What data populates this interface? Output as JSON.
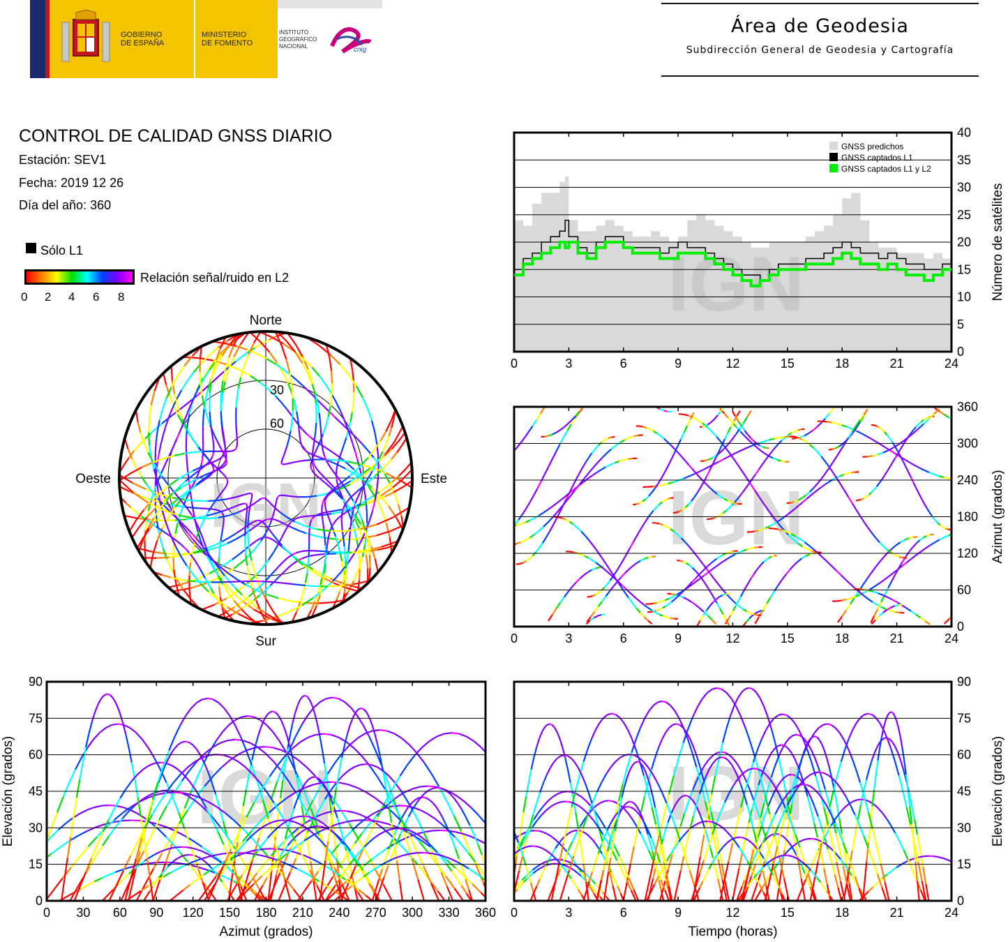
{
  "header": {
    "gov_line1": "GOBIERNO\nDE ESPAÑA",
    "gov_line2": "MINISTERIO\nDE FOMENTO",
    "gov_line3": "INSTITUTO\nGEOGRÁFICO\nNACIONAL",
    "cnig_logo": "cnig",
    "area_title": "Área de Geodesia",
    "area_subtitle": "Subdirección General de Geodesia y Cartografía"
  },
  "info": {
    "title": "CONTROL DE CALIDAD GNSS DIARIO",
    "station": "Estación: SEV1",
    "date": "Fecha: 2019 12 26",
    "doy": "Día del año: 360",
    "solo_l1": "Sólo L1",
    "snr_label": "Relación señal/ruido en L2",
    "snr_ticks": [
      "0",
      "2",
      "4",
      "6",
      "8"
    ]
  },
  "colors": {
    "snr_scale": [
      "#ff0000",
      "#ff8000",
      "#ffff00",
      "#00e000",
      "#00ffff",
      "#0040ff",
      "#8000ff",
      "#ff00ff"
    ],
    "predicted": "#d9d9d9",
    "l1": "#000000",
    "l1l2": "#00ee00"
  },
  "watermark": "IGN",
  "chart_data": [
    {
      "id": "sat_count",
      "type": "area",
      "xlabel": "",
      "ylabel": "Número de satélites",
      "xlim": [
        0,
        24
      ],
      "ylim": [
        0,
        40
      ],
      "xticks": [
        "0",
        "3",
        "6",
        "9",
        "12",
        "15",
        "18",
        "21",
        "24"
      ],
      "yticks": [
        "0",
        "5",
        "10",
        "15",
        "20",
        "25",
        "30",
        "35",
        "40"
      ],
      "grid": "horizontal",
      "legend_position": "top-right",
      "x": [
        0,
        0.5,
        1,
        1.5,
        2,
        2.5,
        2.8,
        3,
        3.5,
        4,
        4.5,
        5,
        5.5,
        6,
        6.5,
        7,
        7.5,
        8,
        8.5,
        9,
        9.5,
        10,
        10.5,
        11,
        11.5,
        12,
        12.5,
        13,
        13.5,
        14,
        14.5,
        15,
        15.5,
        16,
        16.5,
        17,
        17.5,
        18,
        18.5,
        19,
        19.5,
        20,
        20.5,
        21,
        21.5,
        22,
        22.5,
        23,
        23.5,
        24
      ],
      "series": [
        {
          "name": "GNSS predichos",
          "values": [
            24,
            23,
            27,
            29,
            29,
            31,
            32,
            24,
            22,
            22,
            23,
            24,
            23,
            22,
            21,
            21,
            22,
            21,
            20,
            21,
            24,
            25,
            24,
            23,
            22,
            21,
            20,
            19,
            19,
            20,
            20,
            20,
            20,
            21,
            22,
            23,
            25,
            28,
            29,
            24,
            20,
            19,
            19,
            18,
            18,
            18,
            17,
            18,
            17,
            17
          ]
        },
        {
          "name": "GNSS captados L1",
          "values": [
            15,
            17,
            18,
            20,
            21,
            22,
            24,
            21,
            19,
            18,
            20,
            21,
            21,
            19,
            19,
            19,
            19,
            18,
            19,
            20,
            19,
            19,
            18,
            17,
            16,
            15,
            14,
            14,
            13,
            15,
            16,
            16,
            16,
            17,
            17,
            18,
            19,
            20,
            19,
            18,
            18,
            17,
            18,
            17,
            16,
            16,
            15,
            15,
            16,
            16
          ]
        },
        {
          "name": "GNSS captados L1 y L2",
          "values": [
            14,
            16,
            17,
            18,
            19,
            20,
            19,
            20,
            18,
            17,
            19,
            20,
            20,
            19,
            18,
            18,
            18,
            17,
            17,
            18,
            18,
            18,
            17,
            16,
            15,
            14,
            13,
            12,
            13,
            14,
            15,
            15,
            15,
            16,
            16,
            16,
            17,
            18,
            17,
            16,
            16,
            15,
            16,
            15,
            14,
            14,
            13,
            14,
            15,
            15
          ]
        }
      ]
    },
    {
      "id": "azimuth_time",
      "type": "scatter",
      "xlabel": "",
      "ylabel": "Azimut (grados)",
      "xlim": [
        0,
        24
      ],
      "ylim": [
        0,
        360
      ],
      "xticks": [
        "0",
        "3",
        "6",
        "9",
        "12",
        "15",
        "18",
        "21",
        "24"
      ],
      "yticks": [
        "0",
        "60",
        "120",
        "180",
        "240",
        "300",
        "360"
      ],
      "grid": "horizontal"
    },
    {
      "id": "elevation_azimuth",
      "type": "scatter",
      "xlabel": "Azimut (grados)",
      "ylabel": "Elevación (grados)",
      "xlim": [
        0,
        360
      ],
      "ylim": [
        0,
        90
      ],
      "xticks": [
        "0",
        "30",
        "60",
        "90",
        "120",
        "150",
        "180",
        "210",
        "240",
        "270",
        "300",
        "330",
        "360"
      ],
      "yticks": [
        "0",
        "15",
        "30",
        "45",
        "60",
        "75",
        "90"
      ],
      "grid": "horizontal"
    },
    {
      "id": "elevation_time",
      "type": "scatter",
      "xlabel": "Tiempo (horas)",
      "ylabel": "Elevación (grados)",
      "xlim": [
        0,
        24
      ],
      "ylim": [
        0,
        90
      ],
      "xticks": [
        "0",
        "3",
        "6",
        "9",
        "12",
        "15",
        "18",
        "21",
        "24"
      ],
      "yticks": [
        "0",
        "15",
        "30",
        "45",
        "60",
        "75",
        "90"
      ],
      "grid": "horizontal"
    },
    {
      "id": "skyplot",
      "type": "scatter",
      "labels": {
        "north": "Norte",
        "south": "Sur",
        "east": "Este",
        "west": "Oeste"
      },
      "rings": [
        "30",
        "60"
      ]
    }
  ]
}
